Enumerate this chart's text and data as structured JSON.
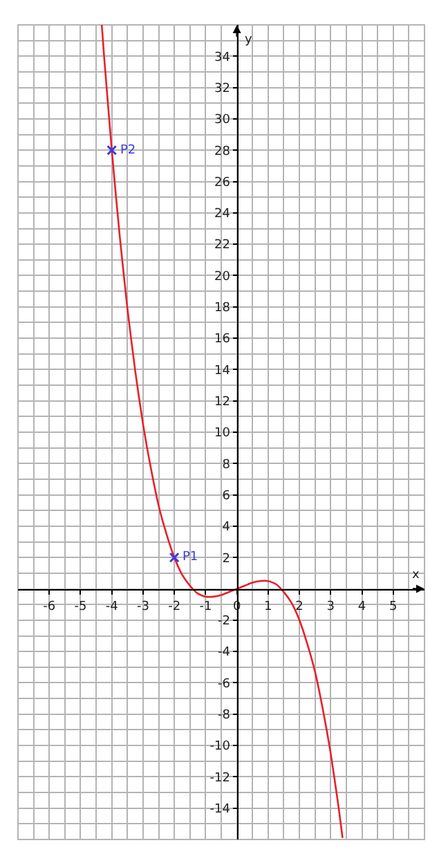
{
  "chart_data": {
    "type": "line",
    "xlabel": "x",
    "ylabel": "y",
    "xlim": [
      -7,
      6
    ],
    "ylim": [
      -16,
      36
    ],
    "xticks": [
      -6,
      -5,
      -4,
      -3,
      -2,
      -1,
      0,
      1,
      2,
      3,
      4,
      5
    ],
    "yticks": [
      -14,
      -12,
      -10,
      -8,
      -6,
      -4,
      -2,
      2,
      4,
      6,
      8,
      10,
      12,
      14,
      16,
      18,
      20,
      22,
      24,
      26,
      28,
      30,
      32,
      34
    ],
    "grid": true,
    "series": [
      {
        "color": "#e8202a",
        "x": [
          -4.32,
          -4.25,
          -4,
          -3.75,
          -3.5,
          -3.25,
          -3,
          -2.75,
          -2.5,
          -2.25,
          -2,
          -1.75,
          -1.5,
          -1.25,
          -1,
          -0.75,
          -0.5,
          -0.25,
          0,
          0.25,
          0.5,
          0.75,
          1,
          1.25,
          1.5,
          1.75,
          2,
          2.25,
          2.5,
          2.75,
          3,
          3.25,
          3.38
        ],
        "values": [
          36,
          34.1,
          28,
          22.6,
          17.9,
          13.9,
          10.5,
          7.7,
          5.3,
          3.5,
          2,
          0.9,
          0.2,
          -0.3,
          -0.5,
          -0.5,
          -0.4,
          -0.2,
          0,
          0.2,
          0.4,
          0.5,
          0.5,
          0.3,
          -0.2,
          -0.9,
          -2,
          -3.5,
          -5.3,
          -7.7,
          -10.5,
          -13.9,
          -15.9
        ]
      },
      {
        "type": "scatter",
        "color": "#3a3adc",
        "marker": "cross",
        "x": [
          -4,
          -2
        ],
        "values": [
          28,
          2
        ]
      }
    ],
    "annotations": [
      {
        "text": "P2",
        "x": -4,
        "y": 28
      },
      {
        "text": "P1",
        "x": -2,
        "y": 2
      }
    ]
  }
}
